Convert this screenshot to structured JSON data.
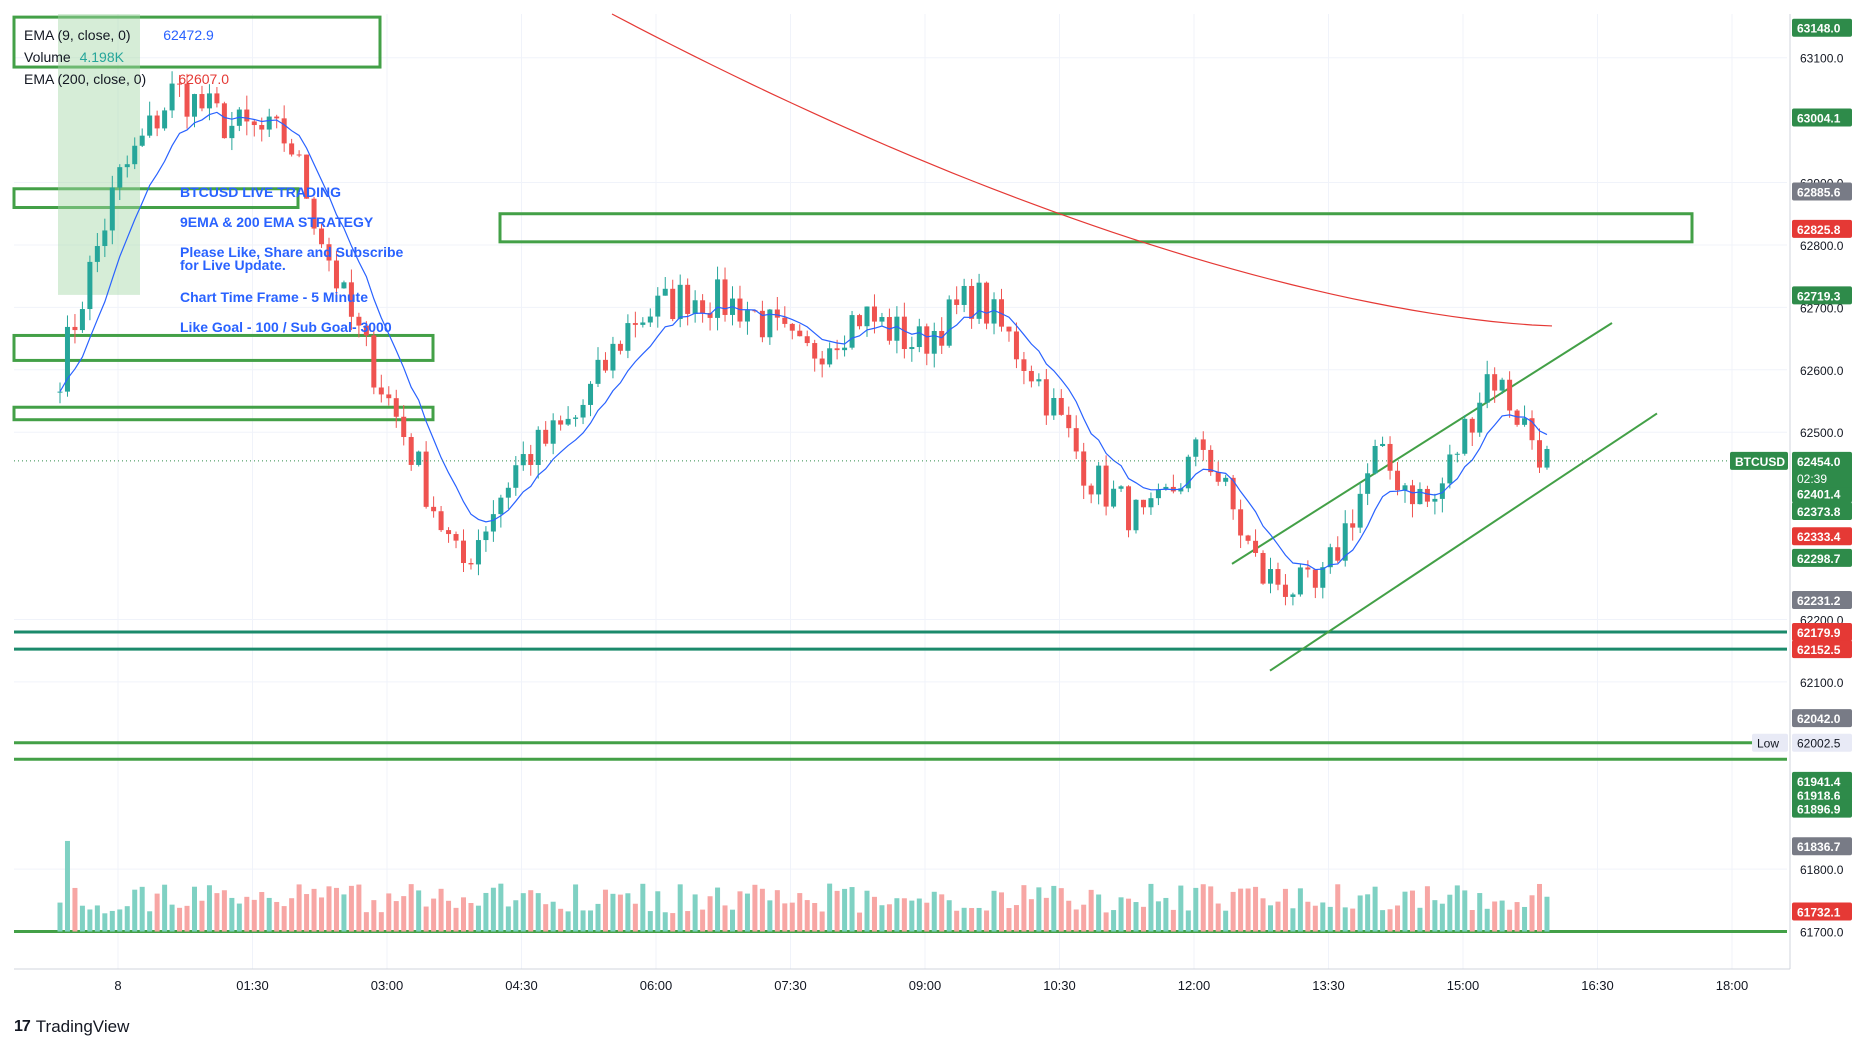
{
  "chart_data": {
    "type": "candlestick",
    "symbol": "BTCUSD",
    "y_range": [
      61640,
      63170
    ],
    "time_ticks": [
      "8",
      "01:30",
      "03:00",
      "04:30",
      "06:00",
      "07:30",
      "09:00",
      "10:30",
      "12:00",
      "13:30",
      "15:00",
      "16:30",
      "18:00"
    ],
    "price_ticks": [
      63100.0,
      62900.0,
      62800.0,
      62700.0,
      62600.0,
      62500.0,
      62200.0,
      62100.0,
      61800.0,
      61700.0
    ],
    "indicators": [
      {
        "label": "EMA (9, close, 0)",
        "value": "62472.9",
        "color": "#2962ff"
      },
      {
        "label": "Volume",
        "value": "4.198K",
        "color": "#26a69a"
      },
      {
        "label": "EMA (200, close, 0)",
        "value": "62607.0",
        "color": "#e53935"
      }
    ],
    "annotations": [
      "BTCUSD LIVE TRADING",
      "9EMA & 200 EMA  STRATEGY",
      "Please Like, Share and Subscribe",
      "for Live Update.",
      "Chart Time Frame - 5 Minute",
      "Like Goal - 100 / Sub Goal- 3000"
    ],
    "price_labels": [
      {
        "text": "63148.0",
        "value": 63148.0,
        "color": "#2e8b4a"
      },
      {
        "text": "63004.1",
        "value": 63004.1,
        "color": "#2e8b4a"
      },
      {
        "text": "62885.6",
        "value": 62885.6,
        "color": "#787b86"
      },
      {
        "text": "62825.8",
        "value": 62825.8,
        "color": "#e53935"
      },
      {
        "text": "62719.3",
        "value": 62719.3,
        "color": "#2e8b4a"
      },
      {
        "text": "62401.4",
        "value": 62401.4,
        "color": "#2e8b4a"
      },
      {
        "text": "62373.8",
        "value": 62373.8,
        "color": "#2e8b4a"
      },
      {
        "text": "62333.4",
        "value": 62333.4,
        "color": "#e53935"
      },
      {
        "text": "62298.7",
        "value": 62298.7,
        "color": "#2e8b4a"
      },
      {
        "text": "62231.2",
        "value": 62231.2,
        "color": "#787b86"
      },
      {
        "text": "62179.9",
        "value": 62179.9,
        "color": "#e53935"
      },
      {
        "text": "62152.5",
        "value": 62152.5,
        "color": "#e53935"
      },
      {
        "text": "62042.0",
        "value": 62042.0,
        "color": "#787b86"
      },
      {
        "text": "61941.4",
        "value": 61941.4,
        "color": "#2e8b4a"
      },
      {
        "text": "61918.6",
        "value": 61918.6,
        "color": "#2e8b4a"
      },
      {
        "text": "61896.9",
        "value": 61896.9,
        "color": "#2e8b4a"
      },
      {
        "text": "61836.7",
        "value": 61836.7,
        "color": "#787b86"
      },
      {
        "text": "61732.1",
        "value": 61732.1,
        "color": "#e53935"
      }
    ],
    "current_price": {
      "value": "62454.0",
      "countdown": "02:39",
      "symbol": "BTCUSD",
      "color": "#2e8b4a"
    },
    "low_marker": {
      "label": "Low",
      "value": "62002.5"
    },
    "zone_color": "#43a047",
    "horizontal_levels": [
      62179.9,
      62152.5,
      62002.5,
      61976.0,
      61700.0
    ],
    "ema9_color": "#2962ff",
    "ema200_color": "#e53935",
    "up_color": "#26a69a",
    "down_color": "#ef5350",
    "closes_anchor_series": [
      62600,
      62900,
      63050,
      62990,
      62970,
      62700,
      62500,
      62280,
      62450,
      62520,
      62680,
      62720,
      62700,
      62620,
      62690,
      62640,
      62720,
      62600,
      62430,
      62350,
      62480,
      62270,
      62240,
      62460,
      62380,
      62600,
      62454
    ]
  },
  "footer": {
    "brand": "TradingView"
  }
}
